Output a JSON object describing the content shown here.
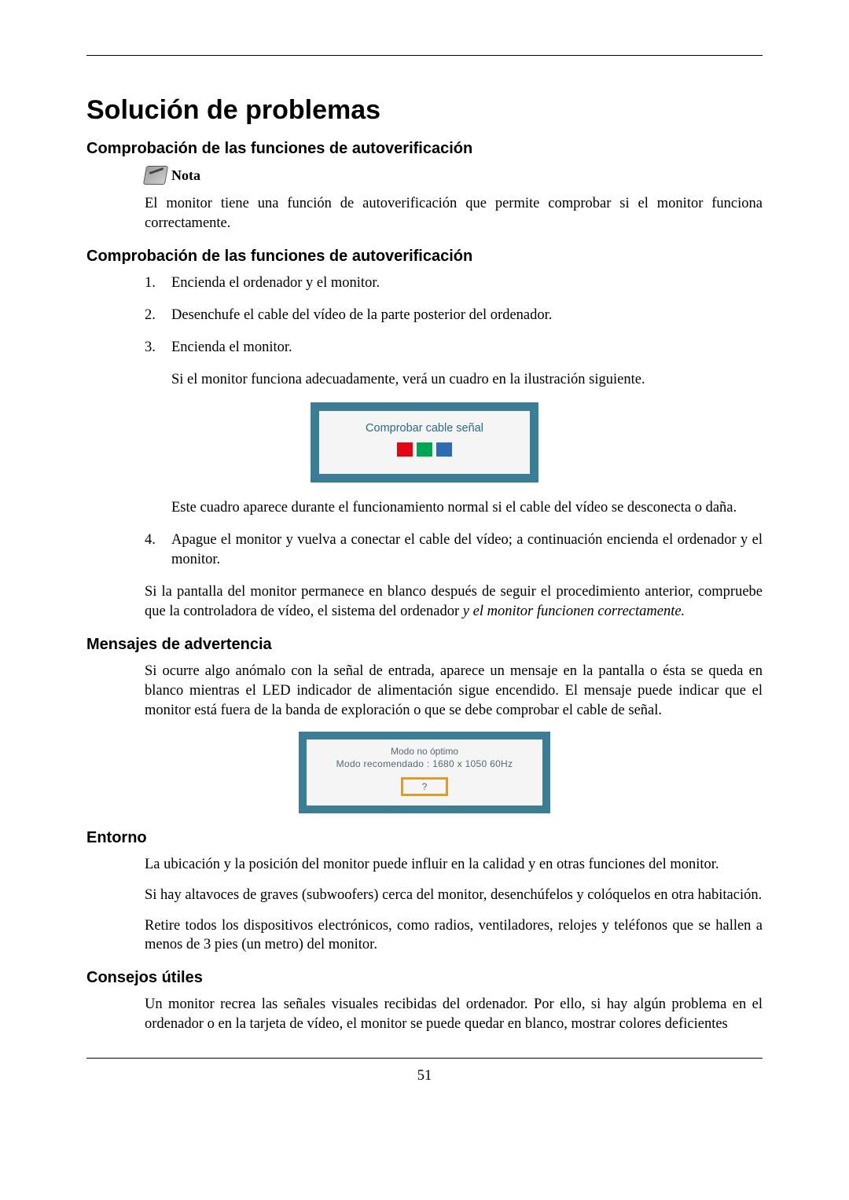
{
  "page": {
    "number": "51",
    "title": "Solución de problemas"
  },
  "sections": {
    "s1": {
      "heading": "Comprobación de las funciones de autoverificación",
      "note_label": "Nota",
      "note_body": "El monitor tiene una función de autoverificación que permite comprobar si el monitor funciona correctamente."
    },
    "s2": {
      "heading": "Comprobación de las funciones de autoverificación",
      "steps": {
        "n1": "1.",
        "t1": "Encienda el ordenador y el monitor.",
        "n2": "2.",
        "t2": "Desenchufe el cable del vídeo de la parte posterior del ordenador.",
        "n3": "3.",
        "t3": "Encienda el monitor.",
        "after3a": "Si el monitor funciona adecuadamente, verá un cuadro en la ilustración siguiente.",
        "after3b": "Este cuadro aparece durante el funcionamiento normal si el cable del vídeo se desconecta o daña.",
        "n4": "4.",
        "t4": "Apague el monitor y vuelva a conectar el cable del vídeo; a continuación encienda el ordenador y el monitor."
      },
      "tail_plain": "Si la pantalla del monitor permanece en blanco después de seguir el procedimiento anterior, compruebe que la controladora de vídeo, el sistema del ordenador ",
      "tail_italic": "y el monitor funcionen correctamente.",
      "osd1": {
        "title": "Comprobar cable señal",
        "bg": "#3a7d94",
        "inner_bg": "#f5f5f5",
        "colors": {
          "red": "#e30613",
          "green": "#00a651",
          "blue": "#2e6bb5"
        }
      }
    },
    "s3": {
      "heading": "Mensajes de advertencia",
      "body": "Si ocurre algo anómalo con la señal de entrada, aparece un mensaje en la pantalla o ésta se queda en blanco mientras el LED indicador de alimentación sigue encendido. El mensaje puede indicar que el monitor está fuera de la banda de exploración o que se debe comprobar el cable de señal.",
      "osd2": {
        "line1": "Modo no óptimo",
        "line2": "Modo recomendado : 1680 x 1050  60Hz",
        "button": "?",
        "bg": "#3a7d94",
        "inner_bg": "#f5f5f5",
        "btn_border": "#e09b2d"
      }
    },
    "s4": {
      "heading": "Entorno",
      "p1": "La ubicación y la posición del monitor puede influir en la calidad y en otras funciones del monitor.",
      "p2": "Si hay altavoces de graves (subwoofers) cerca del monitor, desenchúfelos y colóquelos en otra habitación.",
      "p3": "Retire todos los dispositivos electrónicos, como radios, ventiladores, relojes y teléfonos que se hallen a menos de 3 pies (un metro) del monitor."
    },
    "s5": {
      "heading": "Consejos útiles",
      "p1": "Un monitor recrea las señales visuales recibidas del ordenador. Por ello, si hay algún problema en el ordenador o en la tarjeta de vídeo, el monitor se puede quedar en blanco, mostrar colores deficientes"
    }
  }
}
